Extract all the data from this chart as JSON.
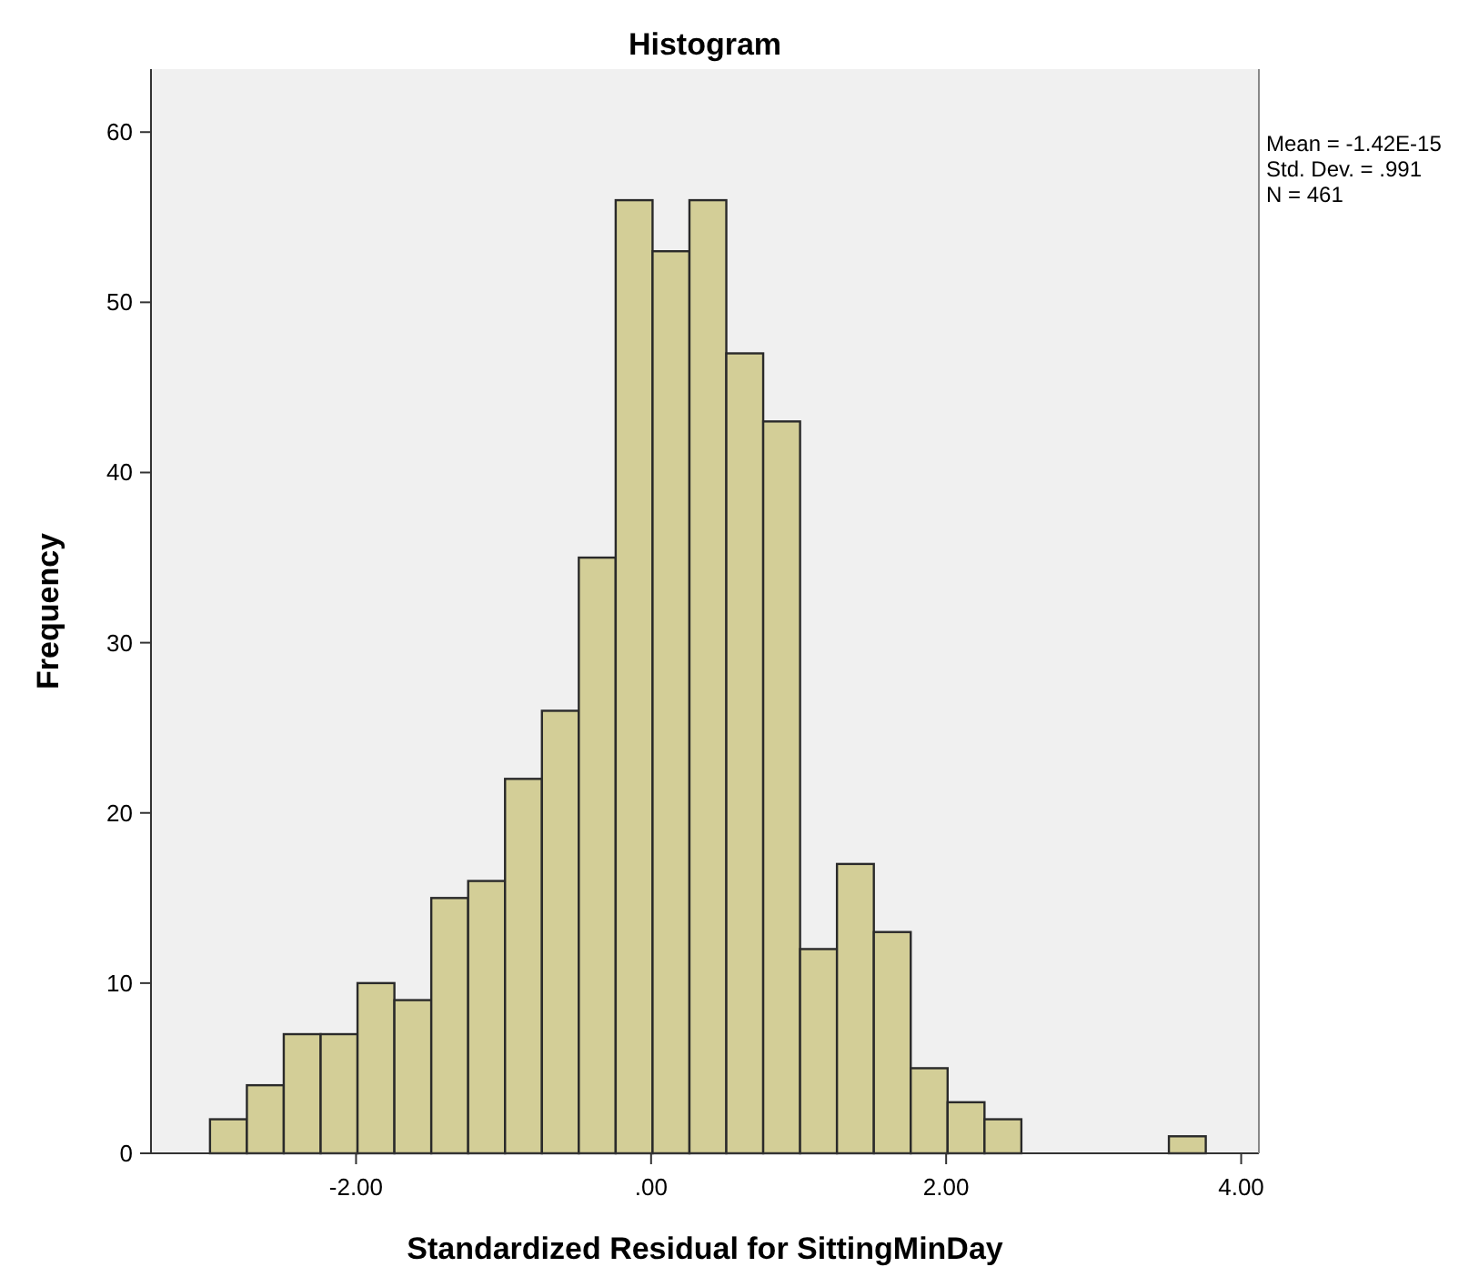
{
  "chart_data": {
    "type": "histogram",
    "title": "Histogram",
    "xlabel": "Standardized Residual for SittingMinDay",
    "ylabel": "Frequency",
    "bins": [
      -2.99,
      -2.74,
      -2.49,
      -2.24,
      -1.99,
      -1.74,
      -1.49,
      -1.24,
      -0.99,
      -0.74,
      -0.49,
      -0.24,
      0.01,
      0.26,
      0.51,
      0.76,
      1.01,
      1.26,
      1.51,
      1.76,
      2.01,
      2.26,
      2.51,
      2.76,
      3.01,
      3.26,
      3.51,
      3.76
    ],
    "values": [
      2,
      4,
      7,
      7,
      10,
      9,
      15,
      16,
      22,
      26,
      35,
      56,
      53,
      56,
      47,
      43,
      12,
      17,
      13,
      5,
      3,
      2,
      0,
      0,
      0,
      0,
      1
    ],
    "color": "#d3ce97",
    "xlim": [
      -3.39,
      4.12
    ],
    "xticks": [
      {
        "value": -2,
        "label": "-2.00"
      },
      {
        "value": 0,
        "label": ".00"
      },
      {
        "value": 2,
        "label": "2.00"
      },
      {
        "value": 4,
        "label": "4.00"
      }
    ],
    "ylim": [
      0,
      63.7
    ],
    "yticks": [
      0,
      10,
      20,
      30,
      40,
      50,
      60
    ],
    "grid": false,
    "annotations": [
      "Mean = -1.42E-15",
      "Std. Dev. = .991",
      "N = 461"
    ]
  }
}
